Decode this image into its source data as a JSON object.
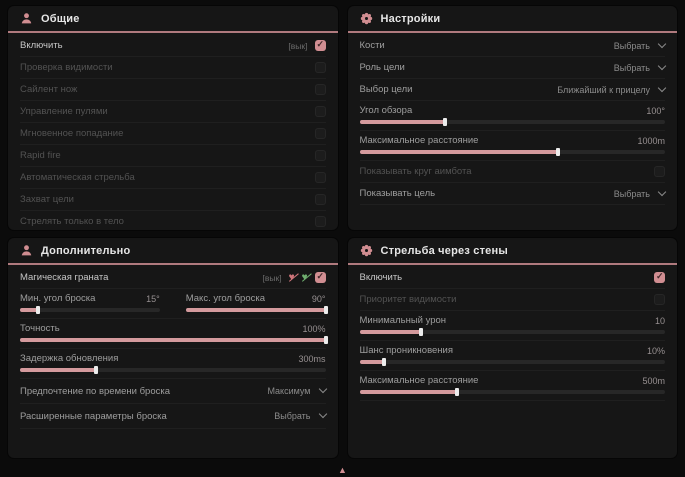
{
  "scroll_indicator": {
    "glyph": "▲"
  },
  "panels": {
    "general": {
      "title": "Общие",
      "rows": [
        {
          "label": "Включить",
          "suffix": "[вык]",
          "checked": true
        },
        {
          "label": "Проверка видимости",
          "checked": false
        },
        {
          "label": "Сайлент нож",
          "checked": false
        },
        {
          "label": "Управление пулями",
          "checked": false
        },
        {
          "label": "Мгновенное попадание",
          "checked": false
        },
        {
          "label": "Rapid fire",
          "checked": false
        },
        {
          "label": "Автоматическая стрельба",
          "checked": false
        },
        {
          "label": "Захват цели",
          "checked": false
        },
        {
          "label": "Стрелять только в тело",
          "checked": false
        }
      ]
    },
    "settings": {
      "title": "Настройки",
      "rows": [
        {
          "label": "Кости",
          "value": "Выбрать"
        },
        {
          "label": "Роль цели",
          "value": "Выбрать"
        },
        {
          "label": "Выбор цели",
          "value": "Ближайший к прицелу"
        },
        {
          "label": "Угол обзора",
          "value": "100°",
          "fill": 28
        },
        {
          "label": "Максимальное расстояние",
          "value": "1000m",
          "fill": 65
        },
        {
          "label": "Показывать круг аимбота",
          "checked": false
        },
        {
          "label": "Показывать цель",
          "value": "Выбрать"
        }
      ]
    },
    "advanced": {
      "title": "Дополнительно",
      "rows": [
        {
          "label": "Магическая граната",
          "suffix": "[вык]",
          "checked": true
        },
        {
          "label": "Мин. угол броска",
          "value": "15°",
          "fill": 13
        },
        {
          "label": "Макс. угол броска",
          "value": "90°",
          "fill": 100
        },
        {
          "label": "Точность",
          "value": "100%",
          "fill": 100
        },
        {
          "label": "Задержка обновления",
          "value": "300ms",
          "fill": 25
        },
        {
          "label": "Предпочтение по времени броска",
          "value": "Максимум"
        },
        {
          "label": "Расширенные параметры броска",
          "value": "Выбрать"
        }
      ]
    },
    "walls": {
      "title": "Стрельба через стены",
      "rows": [
        {
          "label": "Включить",
          "checked": true
        },
        {
          "label": "Приоритет видимости",
          "checked": false
        },
        {
          "label": "Минимальный урон",
          "value": "10",
          "fill": 20
        },
        {
          "label": "Шанс проникновения",
          "value": "10%",
          "fill": 8
        },
        {
          "label": "Максимальное расстояние",
          "value": "500m",
          "fill": 32
        }
      ]
    }
  }
}
